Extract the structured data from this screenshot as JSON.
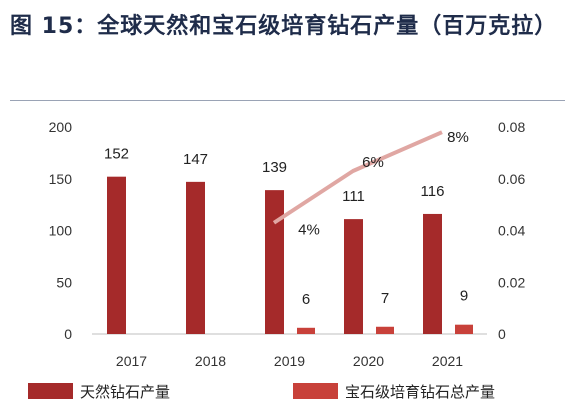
{
  "figure": {
    "title": "图 15：全球天然和宝石级培育钻石产量（百万克拉）"
  },
  "chart_data": {
    "type": "bar",
    "title": "图 15：全球天然和宝石级培育钻石产量（百万克拉）",
    "categories": [
      "2017",
      "2018",
      "2019",
      "2020",
      "2021"
    ],
    "series": [
      {
        "name": "天然钻石产量",
        "type": "bar",
        "axis": "left",
        "values": [
          152,
          147,
          139,
          111,
          116
        ],
        "labels": [
          "152",
          "147",
          "139",
          "111",
          "116"
        ]
      },
      {
        "name": "宝石级培育钻石总产量",
        "type": "bar",
        "axis": "left",
        "values": [
          null,
          null,
          6,
          7,
          9
        ],
        "labels": [
          "",
          "",
          "6",
          "7",
          "9"
        ]
      },
      {
        "name": "",
        "type": "line",
        "axis": "right",
        "values": [
          null,
          null,
          0.043,
          0.063,
          0.078
        ],
        "labels": [
          "",
          "",
          "4%",
          "6%",
          "8%"
        ]
      }
    ],
    "left_axis": {
      "ylim": [
        0,
        200
      ],
      "ticks": [
        0,
        50,
        100,
        150,
        200
      ],
      "tick_labels": [
        "0",
        "50",
        "100",
        "150",
        "200"
      ]
    },
    "right_axis": {
      "ylim": [
        0,
        0.08
      ],
      "ticks": [
        0,
        0.02,
        0.04,
        0.06,
        0.08
      ],
      "tick_labels": [
        "0",
        "0.02",
        "0.04",
        "0.06",
        "0.08"
      ]
    },
    "grid": false,
    "legend": {
      "position": "bottom"
    },
    "colors": {
      "natural": "#a52a2a",
      "lab": "#c8413a",
      "line": "#e0a7a3"
    }
  }
}
